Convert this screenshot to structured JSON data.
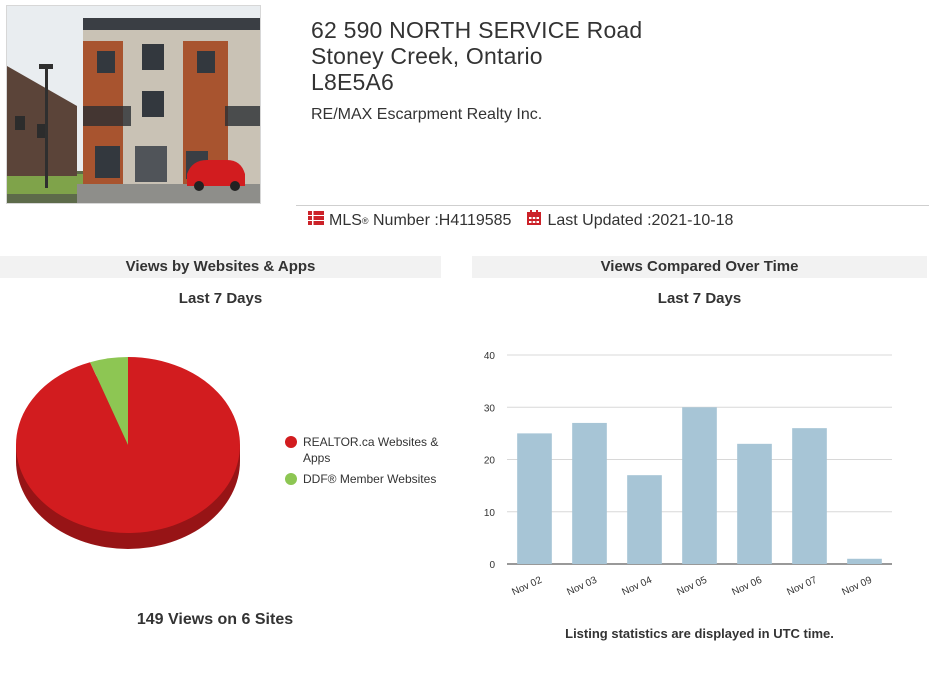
{
  "listing": {
    "address_line1": "62 590 NORTH SERVICE Road",
    "address_line2": "Stoney Creek, Ontario",
    "postal_code": "L8E5A6",
    "brokerage": "RE/MAX Escarpment Realty Inc.",
    "mls_label": "MLS",
    "mls_reg": "®",
    "mls_label_suffix": "Number : ",
    "mls_number": "H4119585",
    "updated_label": "Last Updated : ",
    "updated_date": "2021-10-18"
  },
  "icons": {
    "mls": "list-icon",
    "updated": "calendar-icon"
  },
  "colors": {
    "brand_red": "#cc2229",
    "pie_red": "#d21c1f",
    "pie_green": "#8dc653",
    "bar_blue": "#a7c5d6"
  },
  "left_panel": {
    "header": "Views by Websites & Apps",
    "subtitle": "Last 7 Days",
    "total_text": "149 Views on 6 Sites"
  },
  "right_panel": {
    "header": "Views Compared Over Time",
    "subtitle": "Last 7 Days",
    "footnote": "Listing statistics are displayed in UTC time."
  },
  "chart_data": [
    {
      "type": "pie",
      "title": "",
      "legend_position": "right",
      "series": [
        {
          "name": "REALTOR.ca Websites & Apps",
          "value": 94.5,
          "color": "#d21c1f"
        },
        {
          "name": "DDF® Member Websites",
          "value": 5.5,
          "color": "#8dc653"
        }
      ]
    },
    {
      "type": "bar",
      "title": "",
      "xlabel": "",
      "ylabel": "",
      "categories": [
        "Nov 02",
        "Nov 03",
        "Nov 04",
        "Nov 05",
        "Nov 06",
        "Nov 07",
        "Nov 09"
      ],
      "values": [
        25,
        27,
        17,
        30,
        23,
        26,
        1
      ],
      "ylim": [
        0,
        40
      ],
      "yticks": [
        0,
        10,
        20,
        30,
        40
      ],
      "grid": true,
      "color": "#a7c5d6"
    }
  ]
}
